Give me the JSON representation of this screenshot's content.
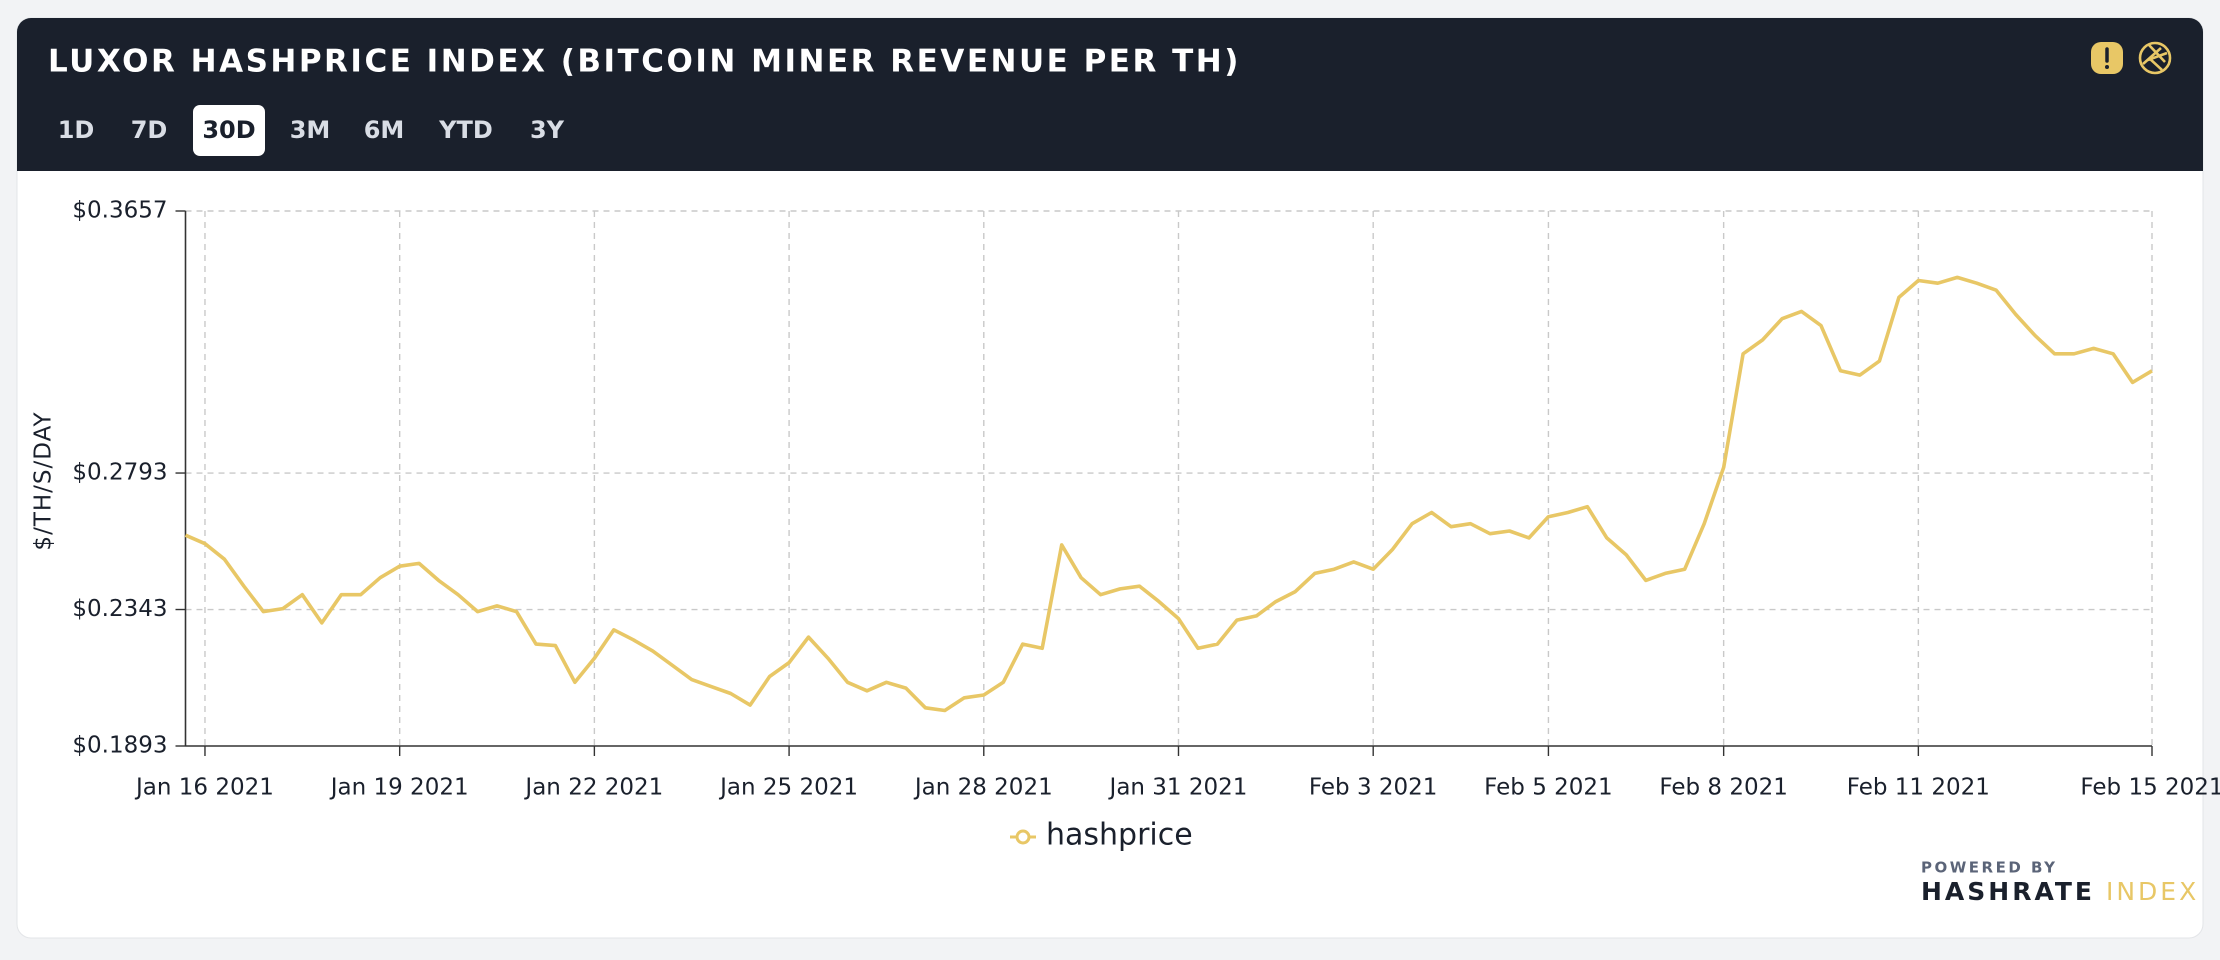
{
  "header": {
    "title": "LUXOR HASHPRICE INDEX (BITCOIN MINER REVENUE PER TH)",
    "ranges": [
      "1D",
      "7D",
      "30D",
      "3M",
      "6M",
      "YTD",
      "3Y"
    ],
    "selected_range": 2
  },
  "chart_data": {
    "type": "line",
    "y_label": "$/TH/S/DAY",
    "categories": [
      null,
      "Jan 16 2021",
      null,
      null,
      null,
      null,
      null,
      null,
      null,
      null,
      null,
      "Jan 19 2021",
      null,
      null,
      null,
      null,
      null,
      null,
      null,
      null,
      null,
      "Jan 22 2021",
      null,
      null,
      null,
      null,
      null,
      null,
      null,
      null,
      null,
      "Jan 25 2021",
      null,
      null,
      null,
      null,
      null,
      null,
      null,
      null,
      null,
      "Jan 28 2021",
      null,
      null,
      null,
      null,
      null,
      null,
      null,
      null,
      null,
      "Jan 31 2021",
      null,
      null,
      null,
      null,
      null,
      null,
      null,
      null,
      null,
      "Feb 3 2021",
      null,
      null,
      null,
      null,
      null,
      null,
      null,
      null,
      "Feb 5 2021",
      null,
      null,
      null,
      null,
      null,
      null,
      null,
      null,
      "Feb 8 2021",
      null,
      null,
      null,
      null,
      null,
      null,
      null,
      null,
      null,
      "Feb 11 2021",
      null,
      null,
      null,
      null,
      null,
      null,
      null,
      null,
      null,
      null,
      null,
      "Feb 15 2021"
    ],
    "series": [
      {
        "name": "hashprice",
        "color": "#e8c766",
        "values": [
          0.2588,
          0.256,
          0.2509,
          0.242,
          0.2336,
          0.2346,
          0.2392,
          0.2299,
          0.2392,
          0.2392,
          0.2448,
          0.2486,
          0.2495,
          0.2439,
          0.2392,
          0.2336,
          0.2355,
          0.2336,
          0.2229,
          0.2224,
          0.2103,
          0.2182,
          0.2276,
          0.2243,
          0.2206,
          0.2159,
          0.2112,
          0.2089,
          0.2066,
          0.2028,
          0.2122,
          0.2168,
          0.2252,
          0.2182,
          0.2103,
          0.2075,
          0.2103,
          0.2084,
          0.2019,
          0.201,
          0.2052,
          0.2061,
          0.2103,
          0.2229,
          0.2215,
          0.2556,
          0.2448,
          0.2392,
          0.2411,
          0.242,
          0.2369,
          0.2313,
          0.2215,
          0.2229,
          0.2308,
          0.2322,
          0.2369,
          0.2402,
          0.2462,
          0.2476,
          0.25,
          0.2476,
          0.2542,
          0.2626,
          0.2663,
          0.2616,
          0.2626,
          0.2593,
          0.2602,
          0.2579,
          0.2649,
          0.2663,
          0.2682,
          0.2579,
          0.2523,
          0.2439,
          0.2462,
          0.2476,
          0.2626,
          0.2812,
          0.3186,
          0.3232,
          0.3302,
          0.3326,
          0.3279,
          0.313,
          0.3116,
          0.3162,
          0.3372,
          0.3428,
          0.3419,
          0.3438,
          0.3419,
          0.3396,
          0.3316,
          0.3246,
          0.3186,
          0.3186,
          0.3204,
          0.3186,
          0.3092,
          0.313
        ]
      }
    ],
    "ylim": [
      0.1893,
      0.3657
    ],
    "yticks": [
      {
        "value": 0.1893,
        "label": "$0.1893"
      },
      {
        "value": 0.2343,
        "label": "$0.2343"
      },
      {
        "value": 0.2793,
        "label": "$0.2793"
      },
      {
        "value": 0.3657,
        "label": "$0.3657"
      }
    ],
    "grid": true
  },
  "footer": {
    "powered_by": "POWERED BY",
    "brand": "HASHRATE",
    "brand_accent": "INDEX"
  }
}
